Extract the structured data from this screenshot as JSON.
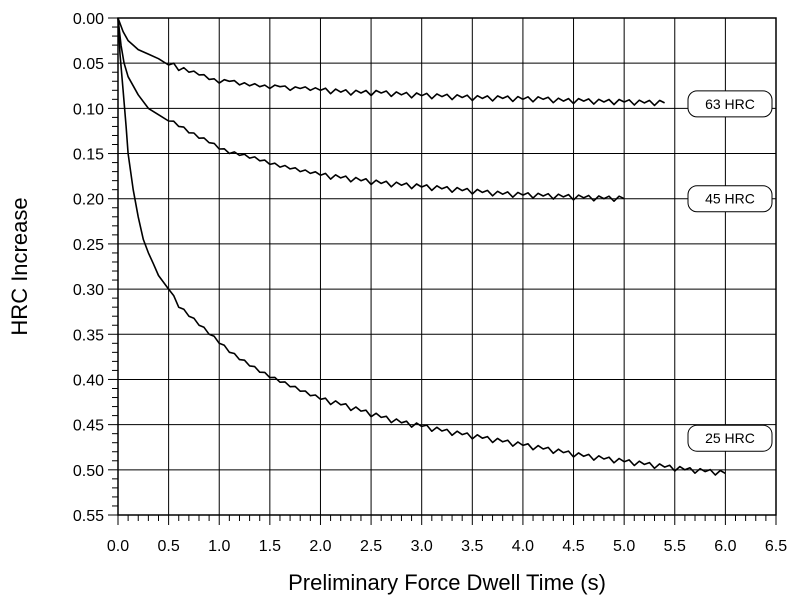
{
  "chart_data": {
    "type": "line",
    "title": "",
    "xlabel": "Preliminary Force Dwell Time (s)",
    "ylabel": "HRC Increase",
    "xlim": [
      0,
      6.5
    ],
    "ylim": [
      0,
      0.55
    ],
    "y_reversed": true,
    "grid": true,
    "x_ticks": [
      "0.0",
      "0.5",
      "1.0",
      "1.5",
      "2.0",
      "2.5",
      "3.0",
      "3.5",
      "4.0",
      "4.5",
      "5.0",
      "5.5",
      "6.0",
      "6.5"
    ],
    "x_tick_values": [
      0,
      0.5,
      1,
      1.5,
      2,
      2.5,
      3,
      3.5,
      4,
      4.5,
      5,
      5.5,
      6,
      6.5
    ],
    "y_ticks": [
      "0.00",
      "0.05",
      "0.10",
      "0.15",
      "0.20",
      "0.25",
      "0.30",
      "0.35",
      "0.40",
      "0.45",
      "0.50",
      "0.55"
    ],
    "y_tick_values": [
      0,
      0.05,
      0.1,
      0.15,
      0.2,
      0.25,
      0.3,
      0.35,
      0.4,
      0.45,
      0.5,
      0.55
    ],
    "series": [
      {
        "name": "63 HRC",
        "label_value": 0.095,
        "x": [
          0,
          0.05,
          0.1,
          0.15,
          0.2,
          0.3,
          0.4,
          0.5,
          0.55,
          0.6,
          0.65,
          0.7,
          0.8,
          0.9,
          1.0,
          1.1,
          1.2,
          1.3,
          1.4,
          1.5,
          1.6,
          1.7,
          1.8,
          1.9,
          2.0,
          2.2,
          2.4,
          2.6,
          2.8,
          3.0,
          3.2,
          3.4,
          3.6,
          3.8,
          4.0,
          4.2,
          4.4,
          4.6,
          4.8,
          5.0,
          5.2,
          5.4
        ],
        "y": [
          0,
          0.015,
          0.025,
          0.03,
          0.035,
          0.04,
          0.045,
          0.052,
          0.05,
          0.058,
          0.055,
          0.06,
          0.063,
          0.068,
          0.072,
          0.07,
          0.074,
          0.075,
          0.076,
          0.078,
          0.076,
          0.08,
          0.078,
          0.08,
          0.08,
          0.082,
          0.083,
          0.083,
          0.085,
          0.086,
          0.087,
          0.088,
          0.089,
          0.089,
          0.09,
          0.09,
          0.092,
          0.092,
          0.093,
          0.093,
          0.094,
          0.094
        ]
      },
      {
        "name": "45 HRC",
        "label_value": 0.2,
        "x": [
          0,
          0.03,
          0.06,
          0.1,
          0.15,
          0.2,
          0.3,
          0.4,
          0.5,
          0.6,
          0.7,
          0.8,
          0.9,
          1.0,
          1.1,
          1.2,
          1.3,
          1.4,
          1.5,
          1.6,
          1.7,
          1.8,
          1.9,
          2.0,
          2.2,
          2.4,
          2.6,
          2.8,
          3.0,
          3.2,
          3.4,
          3.6,
          3.8,
          4.0,
          4.2,
          4.4,
          4.6,
          4.8,
          5.0
        ],
        "y": [
          0,
          0.03,
          0.05,
          0.065,
          0.075,
          0.085,
          0.1,
          0.107,
          0.114,
          0.12,
          0.127,
          0.133,
          0.138,
          0.145,
          0.15,
          0.152,
          0.155,
          0.158,
          0.162,
          0.165,
          0.167,
          0.17,
          0.172,
          0.174,
          0.177,
          0.18,
          0.183,
          0.185,
          0.187,
          0.189,
          0.191,
          0.193,
          0.195,
          0.196,
          0.197,
          0.198,
          0.199,
          0.2,
          0.2
        ]
      },
      {
        "name": "25 HRC",
        "label_value": 0.465,
        "x": [
          0,
          0.02,
          0.05,
          0.08,
          0.1,
          0.15,
          0.2,
          0.25,
          0.3,
          0.35,
          0.4,
          0.5,
          0.6,
          0.7,
          0.8,
          0.9,
          1.0,
          1.1,
          1.2,
          1.3,
          1.4,
          1.5,
          1.6,
          1.7,
          1.8,
          1.9,
          2.0,
          2.2,
          2.4,
          2.6,
          2.8,
          3.0,
          3.2,
          3.4,
          3.6,
          3.8,
          4.0,
          4.2,
          4.4,
          4.6,
          4.8,
          5.0,
          5.2,
          5.4,
          5.6,
          5.8,
          6.0
        ],
        "y": [
          0,
          0.04,
          0.08,
          0.12,
          0.15,
          0.19,
          0.22,
          0.245,
          0.26,
          0.272,
          0.285,
          0.3,
          0.32,
          0.33,
          0.34,
          0.35,
          0.36,
          0.37,
          0.378,
          0.385,
          0.392,
          0.398,
          0.403,
          0.408,
          0.413,
          0.418,
          0.422,
          0.428,
          0.435,
          0.442,
          0.448,
          0.452,
          0.457,
          0.461,
          0.465,
          0.469,
          0.473,
          0.477,
          0.481,
          0.485,
          0.488,
          0.491,
          0.494,
          0.497,
          0.5,
          0.502,
          0.504
        ]
      }
    ]
  }
}
